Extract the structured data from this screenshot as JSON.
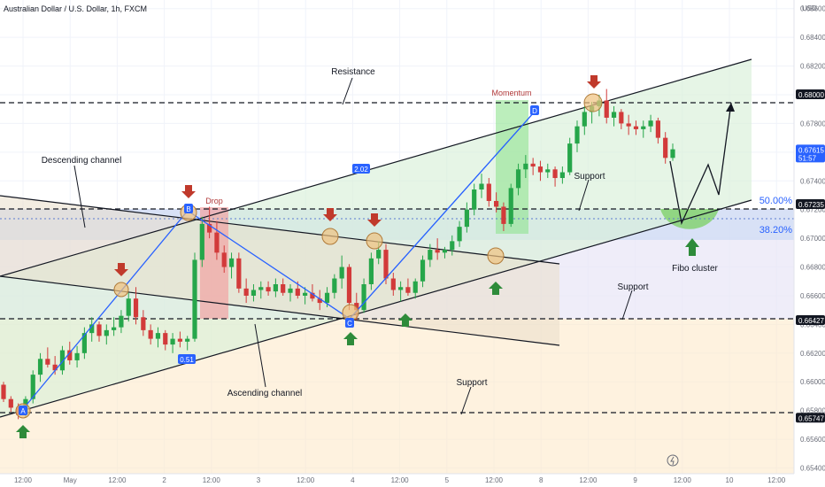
{
  "header": {
    "title": "Australian Dollar / U.S. Dollar, 1h, FXCM",
    "currency": "USD"
  },
  "chart_data": {
    "type": "candlestick",
    "title": "Australian Dollar / U.S. Dollar, 1h, FXCM",
    "ylabel": "USD",
    "ylim": [
      0.6536,
      0.6866
    ],
    "y_ticks": [
      "0.68600",
      "0.68400",
      "0.68200",
      "0.68000",
      "0.67800",
      "0.67600",
      "0.67400",
      "0.67200",
      "0.67000",
      "0.66800",
      "0.66600",
      "0.66400",
      "0.66200",
      "0.66000",
      "0.65800",
      "0.65600",
      "0.65400"
    ],
    "x_ticks": [
      "12:00",
      "May",
      "12:00",
      "2",
      "12:00",
      "3",
      "12:00",
      "4",
      "12:00",
      "5",
      "12:00",
      "8",
      "12:00",
      "9",
      "12:00",
      "10",
      "12:00"
    ],
    "price_badges": [
      {
        "text": "0.68000",
        "style": "dark"
      },
      {
        "text": "0.67615",
        "sub": "51:57",
        "style": "blue"
      },
      {
        "text": "0.67235",
        "style": "dark"
      },
      {
        "text": "0.66427",
        "style": "dark"
      },
      {
        "text": "0.65747",
        "style": "dark"
      }
    ],
    "levels": [
      {
        "name": "Resistance",
        "value": 0.68
      },
      {
        "name": "Support",
        "value": 0.67235
      },
      {
        "name": "Support",
        "value": 0.66427
      },
      {
        "name": "Support",
        "value": 0.65747
      }
    ],
    "fibo": [
      {
        "label": "50.00%",
        "value": 0.67235
      },
      {
        "label": "38.20%",
        "value": 0.6708
      }
    ],
    "pivots": [
      {
        "label": "A",
        "value": 0.6576
      },
      {
        "label": "B",
        "value": 0.6722
      },
      {
        "label": "C",
        "value": 0.6643
      },
      {
        "label": "D",
        "value": 0.6799
      }
    ],
    "measure_tags": [
      "0.51",
      "2.02"
    ],
    "annotations": [
      "Resistance",
      "Support",
      "Support",
      "Support",
      "Descending channel",
      "Ascending channel",
      "Drop",
      "Momentum",
      "Fibo cluster"
    ],
    "candles": [
      [
        0.6598,
        0.66,
        0.6586,
        0.6588
      ],
      [
        0.6588,
        0.659,
        0.6579,
        0.6582
      ],
      [
        0.6582,
        0.6585,
        0.6574,
        0.6577
      ],
      [
        0.6577,
        0.659,
        0.6575,
        0.6588
      ],
      [
        0.6588,
        0.6608,
        0.6585,
        0.6605
      ],
      [
        0.6605,
        0.662,
        0.66,
        0.6616
      ],
      [
        0.6616,
        0.6624,
        0.661,
        0.6612
      ],
      [
        0.6612,
        0.6618,
        0.6605,
        0.6608
      ],
      [
        0.6608,
        0.6625,
        0.6605,
        0.6622
      ],
      [
        0.6622,
        0.6628,
        0.6612,
        0.6615
      ],
      [
        0.6615,
        0.6625,
        0.661,
        0.662
      ],
      [
        0.662,
        0.6638,
        0.6616,
        0.6634
      ],
      [
        0.6634,
        0.6645,
        0.6628,
        0.664
      ],
      [
        0.664,
        0.6642,
        0.6628,
        0.6632
      ],
      [
        0.6632,
        0.664,
        0.6626,
        0.6636
      ],
      [
        0.6636,
        0.6645,
        0.6632,
        0.6638
      ],
      [
        0.6638,
        0.665,
        0.6634,
        0.6646
      ],
      [
        0.6646,
        0.6662,
        0.6642,
        0.6658
      ],
      [
        0.6658,
        0.6666,
        0.664,
        0.6645
      ],
      [
        0.6645,
        0.665,
        0.6632,
        0.6636
      ],
      [
        0.6636,
        0.664,
        0.6626,
        0.663
      ],
      [
        0.663,
        0.6638,
        0.6624,
        0.6634
      ],
      [
        0.6634,
        0.6636,
        0.6622,
        0.6626
      ],
      [
        0.6626,
        0.6634,
        0.662,
        0.663
      ],
      [
        0.663,
        0.6635,
        0.6624,
        0.6628
      ],
      [
        0.6628,
        0.6632,
        0.6622,
        0.663
      ],
      [
        0.663,
        0.669,
        0.6628,
        0.6685
      ],
      [
        0.6685,
        0.6715,
        0.668,
        0.671
      ],
      [
        0.671,
        0.6722,
        0.67,
        0.6704
      ],
      [
        0.6704,
        0.6712,
        0.6685,
        0.669
      ],
      [
        0.669,
        0.6695,
        0.6676,
        0.668
      ],
      [
        0.668,
        0.669,
        0.6672,
        0.6686
      ],
      [
        0.6686,
        0.669,
        0.6662,
        0.6665
      ],
      [
        0.6665,
        0.6672,
        0.6655,
        0.666
      ],
      [
        0.666,
        0.6668,
        0.6656,
        0.6664
      ],
      [
        0.6664,
        0.667,
        0.6658,
        0.6666
      ],
      [
        0.6666,
        0.667,
        0.666,
        0.6663
      ],
      [
        0.6663,
        0.6672,
        0.6659,
        0.6668
      ],
      [
        0.6668,
        0.6672,
        0.666,
        0.6662
      ],
      [
        0.6662,
        0.6668,
        0.6656,
        0.6665
      ],
      [
        0.6665,
        0.667,
        0.6658,
        0.666
      ],
      [
        0.666,
        0.6666,
        0.6654,
        0.6662
      ],
      [
        0.6662,
        0.6668,
        0.6656,
        0.6658
      ],
      [
        0.6658,
        0.6664,
        0.665,
        0.6655
      ],
      [
        0.6655,
        0.6666,
        0.6652,
        0.6662
      ],
      [
        0.6662,
        0.6675,
        0.6658,
        0.6672
      ],
      [
        0.6672,
        0.6688,
        0.6665,
        0.668
      ],
      [
        0.668,
        0.6682,
        0.665,
        0.6655
      ],
      [
        0.6655,
        0.6662,
        0.6643,
        0.665
      ],
      [
        0.665,
        0.6672,
        0.6648,
        0.6668
      ],
      [
        0.6668,
        0.669,
        0.6664,
        0.6686
      ],
      [
        0.6686,
        0.6698,
        0.6682,
        0.6692
      ],
      [
        0.6692,
        0.6696,
        0.6668,
        0.6672
      ],
      [
        0.6672,
        0.6676,
        0.666,
        0.6664
      ],
      [
        0.6664,
        0.667,
        0.6656,
        0.6666
      ],
      [
        0.6666,
        0.6672,
        0.666,
        0.6662
      ],
      [
        0.6662,
        0.6672,
        0.6658,
        0.667
      ],
      [
        0.667,
        0.6688,
        0.6666,
        0.6685
      ],
      [
        0.6685,
        0.6696,
        0.668,
        0.6692
      ],
      [
        0.6692,
        0.67,
        0.6685,
        0.669
      ],
      [
        0.669,
        0.6694,
        0.6686,
        0.6692
      ],
      [
        0.6692,
        0.6702,
        0.6688,
        0.6698
      ],
      [
        0.6698,
        0.6712,
        0.6694,
        0.6708
      ],
      [
        0.6708,
        0.6725,
        0.6704,
        0.672
      ],
      [
        0.672,
        0.6738,
        0.6716,
        0.6734
      ],
      [
        0.6734,
        0.6745,
        0.6728,
        0.6738
      ],
      [
        0.6738,
        0.6742,
        0.6722,
        0.6726
      ],
      [
        0.6726,
        0.6732,
        0.6718,
        0.6722
      ],
      [
        0.6722,
        0.6725,
        0.6705,
        0.671
      ],
      [
        0.671,
        0.6738,
        0.6708,
        0.6735
      ],
      [
        0.6735,
        0.6752,
        0.673,
        0.6748
      ],
      [
        0.6748,
        0.6758,
        0.6742,
        0.6752
      ],
      [
        0.6752,
        0.6756,
        0.6744,
        0.675
      ],
      [
        0.675,
        0.6754,
        0.674,
        0.6746
      ],
      [
        0.6746,
        0.6752,
        0.6742,
        0.6748
      ],
      [
        0.6748,
        0.675,
        0.6736,
        0.6742
      ],
      [
        0.6742,
        0.675,
        0.6738,
        0.6746
      ],
      [
        0.6746,
        0.677,
        0.6744,
        0.6766
      ],
      [
        0.6766,
        0.6782,
        0.676,
        0.6778
      ],
      [
        0.6778,
        0.6792,
        0.6772,
        0.6788
      ],
      [
        0.6788,
        0.6795,
        0.678,
        0.6792
      ],
      [
        0.6792,
        0.68,
        0.6785,
        0.6796
      ],
      [
        0.6796,
        0.6804,
        0.678,
        0.6784
      ],
      [
        0.6784,
        0.6792,
        0.6778,
        0.6788
      ],
      [
        0.6788,
        0.679,
        0.6776,
        0.678
      ],
      [
        0.678,
        0.6786,
        0.6772,
        0.6778
      ],
      [
        0.6778,
        0.6782,
        0.6772,
        0.6776
      ],
      [
        0.6776,
        0.6782,
        0.677,
        0.6778
      ],
      [
        0.6778,
        0.6786,
        0.6774,
        0.6782
      ],
      [
        0.6782,
        0.6784,
        0.6766,
        0.677
      ],
      [
        0.677,
        0.6774,
        0.6752,
        0.6756
      ],
      [
        0.6756,
        0.6766,
        0.6754,
        0.6762
      ]
    ]
  }
}
